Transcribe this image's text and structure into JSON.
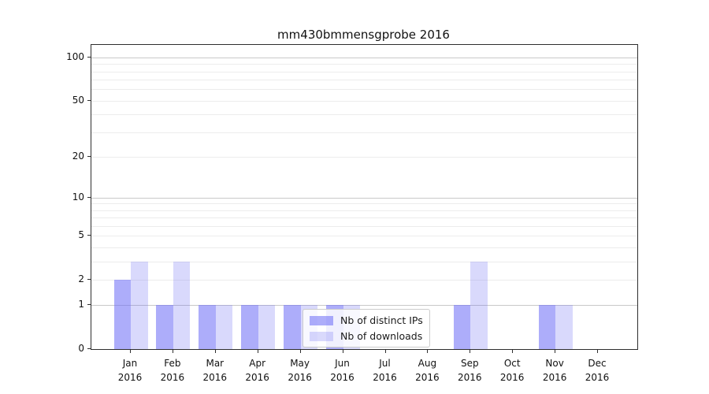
{
  "chart_data": {
    "type": "bar",
    "title": "mm430bmmensgprobe 2016",
    "categories": [
      {
        "month": "Jan",
        "year": "2016"
      },
      {
        "month": "Feb",
        "year": "2016"
      },
      {
        "month": "Mar",
        "year": "2016"
      },
      {
        "month": "Apr",
        "year": "2016"
      },
      {
        "month": "May",
        "year": "2016"
      },
      {
        "month": "Jun",
        "year": "2016"
      },
      {
        "month": "Jul",
        "year": "2016"
      },
      {
        "month": "Aug",
        "year": "2016"
      },
      {
        "month": "Sep",
        "year": "2016"
      },
      {
        "month": "Oct",
        "year": "2016"
      },
      {
        "month": "Nov",
        "year": "2016"
      },
      {
        "month": "Dec",
        "year": "2016"
      }
    ],
    "series": [
      {
        "name": "Nb of distinct IPs",
        "color": "rgba(105,105,245,0.55)",
        "values": [
          2,
          1,
          1,
          1,
          1,
          1,
          0,
          0,
          1,
          0,
          1,
          0
        ]
      },
      {
        "name": "Nb of downloads",
        "color": "rgba(105,105,245,0.25)",
        "values": [
          3,
          3,
          1,
          1,
          1,
          1,
          0,
          0,
          3,
          0,
          1,
          0
        ]
      }
    ],
    "y_axis": {
      "scale": "log1p",
      "max_display": 122,
      "ticks": [
        {
          "v": 0,
          "label": "0"
        },
        {
          "v": 1,
          "label": "1"
        },
        {
          "v": 2,
          "label": "2"
        },
        {
          "v": 5,
          "label": "5"
        },
        {
          "v": 10,
          "label": "10"
        },
        {
          "v": 20,
          "label": "20"
        },
        {
          "v": 50,
          "label": "50"
        },
        {
          "v": 100,
          "label": "100"
        }
      ],
      "grid_major": [
        1,
        10,
        100
      ],
      "grid_minor": [
        2,
        3,
        4,
        5,
        6,
        7,
        8,
        9,
        20,
        30,
        40,
        50,
        60,
        70,
        80,
        90
      ]
    },
    "legend_position": "lower center-left, overlapping Jun-Aug bars",
    "grid": true,
    "colors": {
      "grid_major": "#c9c9c9",
      "grid_minor": "#ececec",
      "spine": "#2e2e2e",
      "text": "#111111",
      "background": "#ffffff"
    }
  }
}
